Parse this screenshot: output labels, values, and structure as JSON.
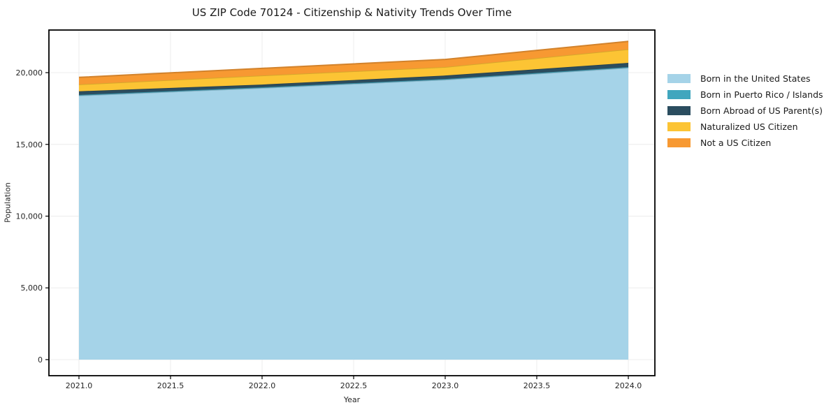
{
  "chart_data": {
    "type": "area",
    "stacked": true,
    "title": "US ZIP Code 70124 - Citizenship & Nativity Trends Over Time",
    "xlabel": "Year",
    "ylabel": "Population",
    "x": [
      2021,
      2022,
      2023,
      2024
    ],
    "series": [
      {
        "name": "Born in the United States",
        "color": "#A5D3E8",
        "values": [
          18400,
          18930,
          19510,
          20340
        ]
      },
      {
        "name": "Born in Puerto Rico / Islands",
        "color": "#41A6BE",
        "values": [
          50,
          50,
          50,
          50
        ]
      },
      {
        "name": "Born Abroad of US Parent(s)",
        "color": "#2B4D5F",
        "values": [
          250,
          190,
          240,
          290
        ]
      },
      {
        "name": "Naturalized US Citizen",
        "color": "#FCC434",
        "values": [
          480,
          630,
          590,
          950
        ]
      },
      {
        "name": "Not a US Citizen",
        "color": "#F79932",
        "values": [
          490,
          500,
          530,
          550
        ]
      }
    ],
    "xlim": [
      2020.836,
      2024.145
    ],
    "ylim": [
      -1120,
      22970
    ],
    "x_ticks": [
      2021.0,
      2021.5,
      2022.0,
      2022.5,
      2023.0,
      2023.5,
      2024.0
    ],
    "x_tick_labels": [
      "2021.0",
      "2021.5",
      "2022.0",
      "2022.5",
      "2023.0",
      "2023.5",
      "2024.0"
    ],
    "y_ticks": [
      0,
      5000,
      10000,
      15000,
      20000
    ],
    "y_tick_labels": [
      "0",
      "5,000",
      "10,000",
      "15,000",
      "20,000"
    ],
    "grid": true,
    "grid_color": "#ececec",
    "axis_color": "#000000",
    "tick_label_color": "#262626",
    "legend_position": "right"
  }
}
